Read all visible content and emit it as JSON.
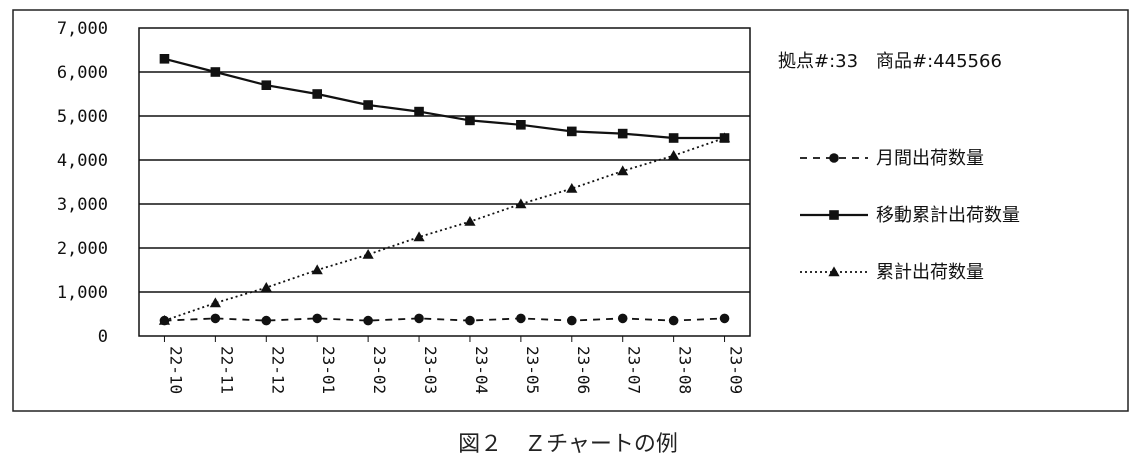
{
  "info_text": "拠点#:33　商品#:445566",
  "caption": "図２　Ｚチャートの例",
  "chart_data": {
    "type": "line",
    "title": "",
    "xlabel": "",
    "ylabel": "",
    "categories": [
      "22-10",
      "22-11",
      "22-12",
      "23-01",
      "23-02",
      "23-03",
      "23-04",
      "23-05",
      "23-06",
      "23-07",
      "23-08",
      "23-09"
    ],
    "ylim": [
      0,
      7000
    ],
    "yticks": [
      0,
      1000,
      2000,
      3000,
      4000,
      5000,
      6000,
      7000
    ],
    "ytick_labels": [
      "0",
      "1,000",
      "2,000",
      "3,000",
      "4,000",
      "5,000",
      "6,000",
      "7,000"
    ],
    "grid": "horizontal",
    "legend_position": "right",
    "series": [
      {
        "name": "月間出荷数量",
        "marker": "circle",
        "style": "dashed",
        "values": [
          350,
          400,
          350,
          400,
          350,
          400,
          350,
          400,
          350,
          400,
          350,
          400
        ]
      },
      {
        "name": "移動累計出荷数量",
        "marker": "square",
        "style": "solid",
        "values": [
          6300,
          6000,
          5700,
          5500,
          5250,
          5100,
          4900,
          4800,
          4650,
          4600,
          4500,
          4500
        ]
      },
      {
        "name": "累計出荷数量",
        "marker": "triangle",
        "style": "dotted",
        "values": [
          350,
          750,
          1100,
          1500,
          1850,
          2250,
          2600,
          3000,
          3350,
          3750,
          4100,
          4500
        ]
      }
    ]
  }
}
